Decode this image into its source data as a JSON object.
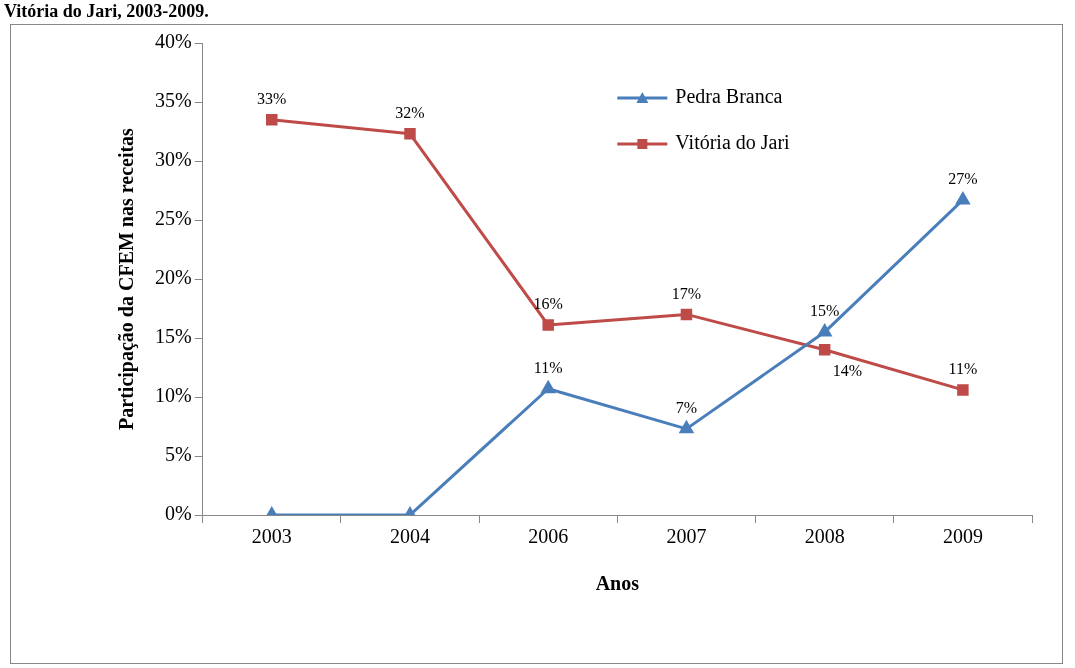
{
  "chart_data": {
    "type": "line",
    "title": "Vitória do Jari, 2003-2009.",
    "xlabel": "Anos",
    "ylabel": "Participação da CFEM nas receitas",
    "categories": [
      "2003",
      "2004",
      "2006",
      "2007",
      "2008",
      "2009"
    ],
    "series": [
      {
        "name": "Pedra Branca",
        "color": "#4a7ebb",
        "marker": "triangle",
        "values": [
          0,
          0,
          10.7,
          7.3,
          15.5,
          26.7
        ],
        "value_labels": [
          null,
          null,
          "11%",
          "7%",
          "15%",
          "27%"
        ]
      },
      {
        "name": "Vitória do Jari",
        "color": "#be4b48",
        "marker": "square",
        "values": [
          33.5,
          32.3,
          16.1,
          17.0,
          14.0,
          10.6
        ],
        "value_labels": [
          "33%",
          "32%",
          "16%",
          "17%",
          "14%",
          "11%"
        ]
      }
    ],
    "ylim": [
      0,
      40
    ],
    "yticks": [
      {
        "value": 0,
        "label": "0%"
      },
      {
        "value": 5,
        "label": "5%"
      },
      {
        "value": 10,
        "label": "10%"
      },
      {
        "value": 15,
        "label": "15%"
      },
      {
        "value": 20,
        "label": "20%"
      },
      {
        "value": 25,
        "label": "25%"
      },
      {
        "value": 30,
        "label": "30%"
      },
      {
        "value": 35,
        "label": "35%"
      },
      {
        "value": 40,
        "label": "40%"
      }
    ],
    "grid": false,
    "legend": "top right",
    "line_style": "solid"
  }
}
